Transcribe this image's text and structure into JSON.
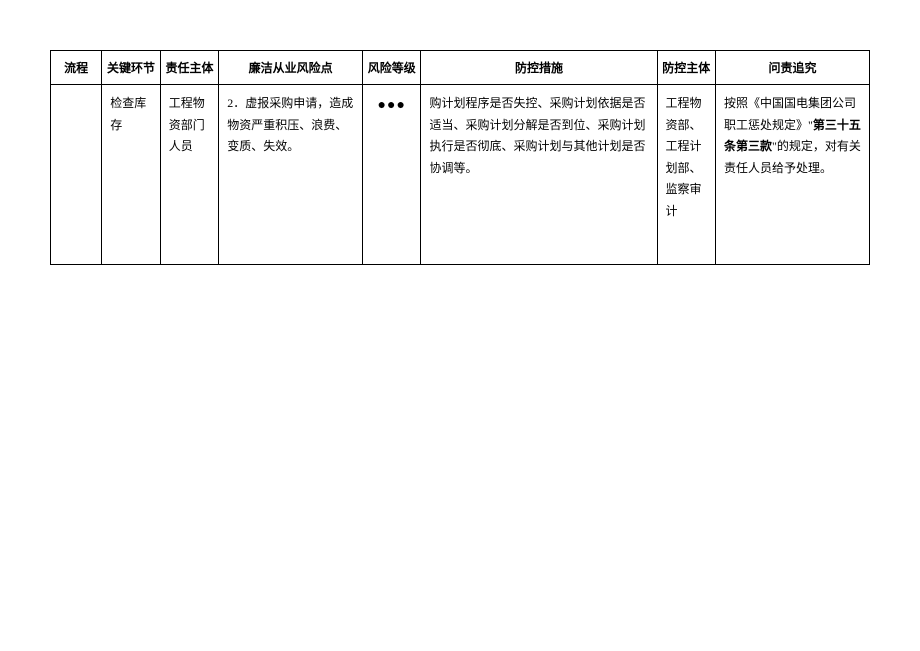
{
  "headers": {
    "process": "流程",
    "key_step": "关键环节",
    "resp_body": "责任主体",
    "risk_point": "廉洁从业风险点",
    "risk_level": "风险等级",
    "measures": "防控措施",
    "control_body": "防控主体",
    "accountability": "问责追究"
  },
  "rows": [
    {
      "process": "",
      "key_step": "检查库存",
      "resp_body": "工程物资部门人员",
      "risk_point": "2．虚报采购申请，造成物资严重积压、浪费、变质、失效。",
      "risk_level": "●●●",
      "measures": "购计划程序是否失控、采购计划依据是否适当、采购计划分解是否到位、采购计划执行是否彻底、采购计划与其他计划是否协调等。",
      "control_body": "工程物资部、工程计划部、监察审计",
      "accountability_pre": "按照《中国国电集团公司职工惩处规定》\"",
      "accountability_bold": "第三十五条第三款",
      "accountability_post": "\"的规定，对有关责任人员给予处理。"
    }
  ],
  "style": {
    "background_color": "#ffffff",
    "border_color": "#000000",
    "text_color": "#000000",
    "red_mark_color": "#c00000",
    "font_size_body": 12,
    "font_size_dots": 14,
    "line_height": 1.8
  }
}
